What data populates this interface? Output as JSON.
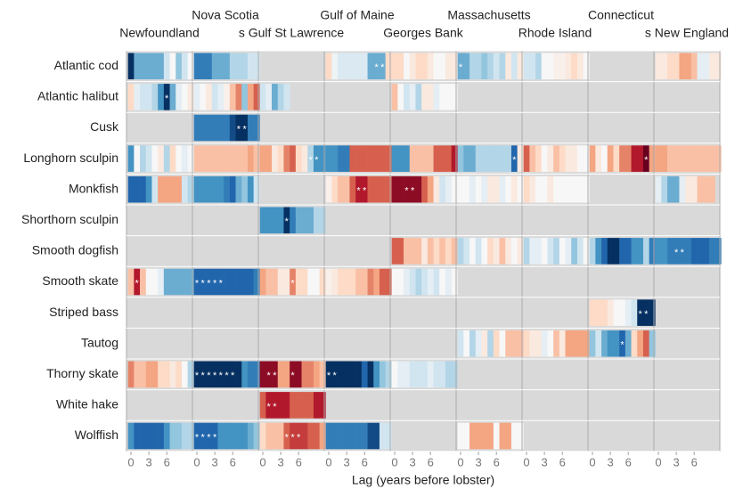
{
  "chart_data": {
    "type": "heatmap",
    "regions": [
      "Newfoundland",
      "Nova Scotia",
      "s Gulf St Lawrence",
      "Gulf of Maine",
      "Georges Bank",
      "Massachusetts",
      "Rhode Island",
      "Connecticut",
      "s New England"
    ],
    "xticks": [
      0,
      3,
      6
    ],
    "xlabel": "Lag (years before lobster)",
    "clim": [
      -1,
      1
    ],
    "palette": [
      "#053061",
      "#2166ac",
      "#4393c3",
      "#92c5de",
      "#d1e5f0",
      "#f7f7f7",
      "#fddbc7",
      "#f4a582",
      "#d6604d",
      "#b2182b",
      "#67001f"
    ],
    "missing_color": "#d9d9d9",
    "star_label": "*",
    "series": [
      {
        "name": "Atlantic cod",
        "values": [
          [
            -1,
            -0.5,
            -0.5,
            -0.5,
            -0.5,
            -0.5,
            -0.2,
            0,
            -0.4,
            -0.2,
            0
          ],
          [
            -0.7,
            -0.7,
            -0.7,
            -0.5,
            -0.5,
            -0.5,
            -0.3,
            -0.3,
            -0.3,
            -0.2,
            -0.2
          ],
          null,
          [
            0.2,
            -0.05,
            -0.15,
            -0.15,
            -0.15,
            -0.15,
            -0.15,
            -0.5,
            -0.5,
            -0.5,
            0.2
          ],
          [
            0.2,
            0.2,
            0,
            0.1,
            0.2,
            0.2,
            0.1,
            0,
            0,
            0.1,
            0.1
          ],
          [
            -0.5,
            -0.5,
            -0.3,
            -0.3,
            -0.4,
            -0.3,
            -0.2,
            -0.3,
            0.1,
            -0.2,
            0.1
          ],
          [
            -0.2,
            -0.2,
            -0.3,
            0,
            0,
            0.05,
            0.05,
            0.1,
            0.2,
            0.1,
            0
          ],
          null,
          [
            0.1,
            0.1,
            0.2,
            0.2,
            0.4,
            0.4,
            0.3,
            -0.1,
            -0.1,
            0.1,
            0.1
          ]
        ],
        "stars": [
          [],
          [],
          [],
          [
            8,
            9
          ],
          [],
          [
            0
          ],
          [],
          [],
          []
        ]
      },
      {
        "name": "Atlantic halibut",
        "values": [
          [
            0.2,
            -0.1,
            -0.2,
            -0.2,
            -0.3,
            -0.6,
            -1,
            -0.5,
            -0.1,
            0,
            0.1
          ],
          [
            -0.1,
            0,
            0.1,
            -0.2,
            -0.1,
            0.05,
            0.3,
            0.5,
            -0.4,
            0.4,
            0.6
          ],
          [
            -0.2,
            -0.1,
            -0.5,
            -0.3,
            -0.2,
            null,
            null,
            null,
            null,
            null,
            null
          ],
          null,
          [
            0.3,
            0,
            -0.2,
            -0.1,
            -0.3,
            0.1,
            0.1,
            -0.1,
            0,
            0,
            0
          ],
          null,
          null,
          null,
          null
        ],
        "stars": [
          [
            6
          ],
          [],
          [],
          [],
          [],
          [],
          [],
          [],
          []
        ]
      },
      {
        "name": "Cusk",
        "values": [
          null,
          [
            -0.7,
            -0.7,
            -0.7,
            -0.7,
            -0.7,
            -0.7,
            -0.9,
            -1,
            -1,
            -0.7,
            -0.7
          ],
          null,
          null,
          null,
          null,
          null,
          null,
          null
        ],
        "stars": [
          [],
          [
            7,
            8
          ],
          [],
          [],
          [],
          [],
          [],
          [],
          []
        ]
      },
      {
        "name": "Longhorn sculpin",
        "values": [
          [
            -0.6,
            0,
            -0.3,
            -0.2,
            0,
            0.1,
            -0.3,
            0.2,
            0,
            -0.1,
            0
          ],
          [
            0.3,
            0.3,
            0.3,
            0.3,
            0.3,
            0.3,
            0.3,
            0.3,
            0.3,
            0.4,
            0.3
          ],
          [
            0.4,
            0.4,
            0.1,
            0.2,
            0.5,
            0.6,
            0.2,
            0.1,
            -0.3,
            -0.6,
            -0.6
          ],
          [
            -0.6,
            -0.6,
            -0.7,
            -0.7,
            0.6,
            0.6,
            0.6,
            0.6,
            0.6,
            0.6,
            0.6
          ],
          [
            -0.6,
            -0.6,
            -0.6,
            0.3,
            0.3,
            0.3,
            0.3,
            0.6,
            0.6,
            0.6,
            0.8
          ],
          [
            -0.4,
            -0.5,
            -0.5,
            -0.3,
            -0.3,
            -0.3,
            -0.3,
            -0.3,
            -0.3,
            -0.8,
            0.1
          ],
          [
            0.6,
            0.3,
            0.2,
            0,
            0.1,
            0.3,
            0.2,
            0.1,
            0.1,
            0,
            0
          ],
          [
            0.4,
            0.1,
            0,
            0.4,
            0.2,
            0.5,
            0.5,
            0.8,
            0.8,
            1,
            0.4
          ],
          [
            0.4,
            0.4,
            0.3,
            0.3,
            0.3,
            0.3,
            0.3,
            0.3,
            0.3,
            0.3,
            0.3
          ]
        ],
        "stars": [
          [],
          [],
          [
            8,
            9
          ],
          [],
          [],
          [
            9
          ],
          [],
          [
            9
          ],
          []
        ]
      },
      {
        "name": "Monkfish",
        "values": [
          [
            -0.8,
            -0.8,
            -0.8,
            -0.6,
            -0.2,
            0.4,
            0.4,
            0.4,
            0.4,
            -0.2,
            -0.3
          ],
          [
            -0.6,
            -0.6,
            -0.6,
            -0.6,
            -0.6,
            -0.7,
            -0.8,
            -0.5,
            -0.4,
            -0.6,
            -0.2
          ],
          null,
          [
            0.05,
            0.2,
            0.3,
            0.3,
            0.6,
            0.8,
            0.8,
            0.6,
            0.6,
            0.6,
            0.6
          ],
          [
            0.9,
            0.9,
            0.9,
            0.9,
            0.9,
            0.6,
            0.4,
            0.1,
            -0.2,
            -0.1,
            0
          ],
          [
            0,
            0,
            -0.1,
            0,
            -0.1,
            0.1,
            0.1,
            -0.1,
            0,
            0.1,
            0
          ],
          [
            0.2,
            0.1,
            0,
            0,
            0.1,
            0,
            0,
            0,
            0,
            0,
            0
          ],
          null,
          [
            -0.1,
            -0.3,
            -0.5,
            -0.5,
            -0.1,
            0.1,
            0.1,
            0.3,
            0.3,
            0.3,
            null
          ]
        ],
        "stars": [
          [],
          [],
          [],
          [
            5,
            6
          ],
          [
            2,
            3
          ],
          [],
          [],
          [],
          []
        ]
      },
      {
        "name": "Shorthorn sculpin",
        "values": [
          null,
          null,
          [
            -0.6,
            -0.6,
            -0.6,
            -0.6,
            -1,
            -0.7,
            -0.5,
            -0.5,
            -0.5,
            -0.3,
            -0.3
          ],
          null,
          null,
          null,
          null,
          null,
          null
        ],
        "stars": [
          [],
          [],
          [
            4
          ],
          [],
          [],
          [],
          [],
          [],
          []
        ]
      },
      {
        "name": "Smooth dogfish",
        "values": [
          null,
          null,
          null,
          null,
          [
            0.6,
            0.6,
            0.3,
            0.3,
            0.3,
            0.1,
            0.3,
            0.2,
            0.3,
            0.2,
            0.3
          ],
          [
            -0.3,
            -0.2,
            0,
            -0.2,
            0,
            0.2,
            0.1,
            0.3,
            0.1,
            0,
            0.1
          ],
          [
            -0.3,
            -0.1,
            -0.1,
            0,
            -0.2,
            -0.3,
            0,
            -0.1,
            -0.4,
            -0.2,
            0
          ],
          [
            -0.3,
            -0.6,
            -0.8,
            -1,
            -1,
            -0.8,
            -0.8,
            -0.6,
            -0.6,
            -0.3,
            -0.7
          ],
          [
            -0.6,
            -0.6,
            -0.7,
            -0.7,
            -0.7,
            -0.7,
            -0.8,
            -0.8,
            -0.8,
            -0.7,
            -0.7
          ]
        ],
        "stars": [
          [],
          [],
          [],
          [],
          [],
          [],
          [],
          [],
          [
            3,
            4
          ]
        ]
      },
      {
        "name": "Smooth skate",
        "values": [
          [
            0.3,
            0.8,
            0.3,
            0,
            0,
            -0.1,
            -0.5,
            -0.5,
            -0.5,
            -0.5,
            -0.5
          ],
          [
            -0.8,
            -0.8,
            -0.8,
            -0.8,
            -0.8,
            -0.8,
            -0.8,
            -0.8,
            -0.8,
            -0.8,
            -0.7
          ],
          [
            0.4,
            0.3,
            0.3,
            0.1,
            0.1,
            0.5,
            0.2,
            0.2,
            0,
            0,
            0.2
          ],
          [
            0.05,
            0.1,
            0.2,
            0.2,
            0.2,
            0.3,
            0.3,
            0.5,
            0.4,
            0.6,
            0.6
          ],
          [
            0,
            0,
            -0.1,
            -0.2,
            -0.3,
            -0.2,
            -0.1,
            -0.2,
            0,
            -0.1,
            0
          ],
          null,
          null,
          null,
          null
        ],
        "stars": [
          [
            1
          ],
          [
            0,
            1,
            2,
            3,
            4
          ],
          [
            5
          ],
          [],
          [],
          [],
          [],
          [],
          []
        ]
      },
      {
        "name": "Striped bass",
        "values": [
          null,
          null,
          null,
          null,
          null,
          null,
          null,
          [
            0.2,
            0.2,
            0.2,
            0.1,
            0,
            0,
            -0.1,
            -0.2,
            -1,
            -1,
            -1
          ],
          null
        ],
        "stars": [
          [],
          [],
          [],
          [],
          [],
          [],
          [],
          [
            8,
            9
          ],
          []
        ]
      },
      {
        "name": "Tautog",
        "values": [
          null,
          null,
          null,
          null,
          null,
          [
            -0.2,
            0,
            -0.3,
            -0.1,
            0.1,
            -0.3,
            0.2,
            0,
            0.3,
            0.3,
            0.3
          ],
          [
            0.2,
            0.1,
            0.1,
            -0.1,
            0,
            0.3,
            0.1,
            0.4,
            0.4,
            0.4,
            0.4
          ],
          [
            -0.4,
            -0.2,
            -0.5,
            -0.6,
            -0.6,
            -0.8,
            -0.5,
            0.2,
            0.4,
            0.6,
            -0.4
          ],
          null
        ],
        "stars": [
          [],
          [],
          [],
          [],
          [],
          [],
          [],
          [
            5
          ],
          []
        ]
      },
      {
        "name": "Thorny skate",
        "values": [
          [
            0.5,
            0.3,
            0.3,
            0.4,
            0.4,
            0.2,
            0.2,
            0.1,
            0.2,
            0,
            -0.3
          ],
          [
            -1,
            -1,
            -1,
            -1,
            -1,
            -1,
            -1,
            -1,
            -0.6,
            -0.7,
            -0.7
          ],
          [
            0.9,
            0.9,
            0.9,
            0.4,
            0.4,
            0.9,
            0.9,
            0.5,
            0.5,
            0.4,
            0.3
          ],
          [
            -1,
            -1,
            -1,
            -1,
            -1,
            -1,
            -0.8,
            -1,
            -0.6,
            -0.4,
            -0.3
          ],
          [
            0,
            -0.1,
            -0.1,
            -0.2,
            -0.2,
            -0.2,
            -0.1,
            -0.2,
            -0.2,
            -0.3,
            -0.3
          ],
          null,
          null,
          null,
          null
        ],
        "stars": [
          [],
          [
            0,
            1,
            2,
            3,
            4,
            5,
            6
          ],
          [
            1,
            2,
            5
          ],
          [
            0,
            1
          ],
          [],
          [],
          [],
          [],
          []
        ]
      },
      {
        "name": "White hake",
        "values": [
          null,
          null,
          [
            0.6,
            0.8,
            0.8,
            0.8,
            0.8,
            0.6,
            0.6,
            0.6,
            0.6,
            0.8,
            0.8
          ],
          null,
          null,
          null,
          null,
          null,
          null
        ],
        "stars": [
          [],
          [],
          [
            1,
            2
          ],
          [],
          [],
          [],
          [],
          [],
          []
        ]
      },
      {
        "name": "Wolffish",
        "values": [
          [
            -0.6,
            -0.8,
            -0.8,
            -0.8,
            -0.8,
            -0.8,
            -0.6,
            -0.4,
            -0.4,
            -0.3,
            -0.3
          ],
          [
            -0.8,
            -0.8,
            -0.8,
            -0.8,
            -0.6,
            -0.6,
            -0.6,
            -0.6,
            -0.6,
            -0.5,
            -0.4
          ],
          [
            0.2,
            0.3,
            0.3,
            0.3,
            0.6,
            0.7,
            0.7,
            0.7,
            0.6,
            0.6,
            0.4
          ],
          [
            -0.7,
            -0.7,
            -0.7,
            -0.7,
            -0.7,
            -0.7,
            -0.7,
            -0.9,
            -0.9,
            -0.2,
            -0.2
          ],
          null,
          [
            0,
            0,
            0.4,
            0.4,
            0.4,
            0.4,
            0,
            0.4,
            0.4,
            0,
            0
          ],
          null,
          null,
          null
        ],
        "stars": [
          [],
          [
            0,
            1,
            2,
            3
          ],
          [
            4,
            5,
            6
          ],
          [],
          [],
          [],
          [],
          [],
          []
        ]
      }
    ]
  }
}
